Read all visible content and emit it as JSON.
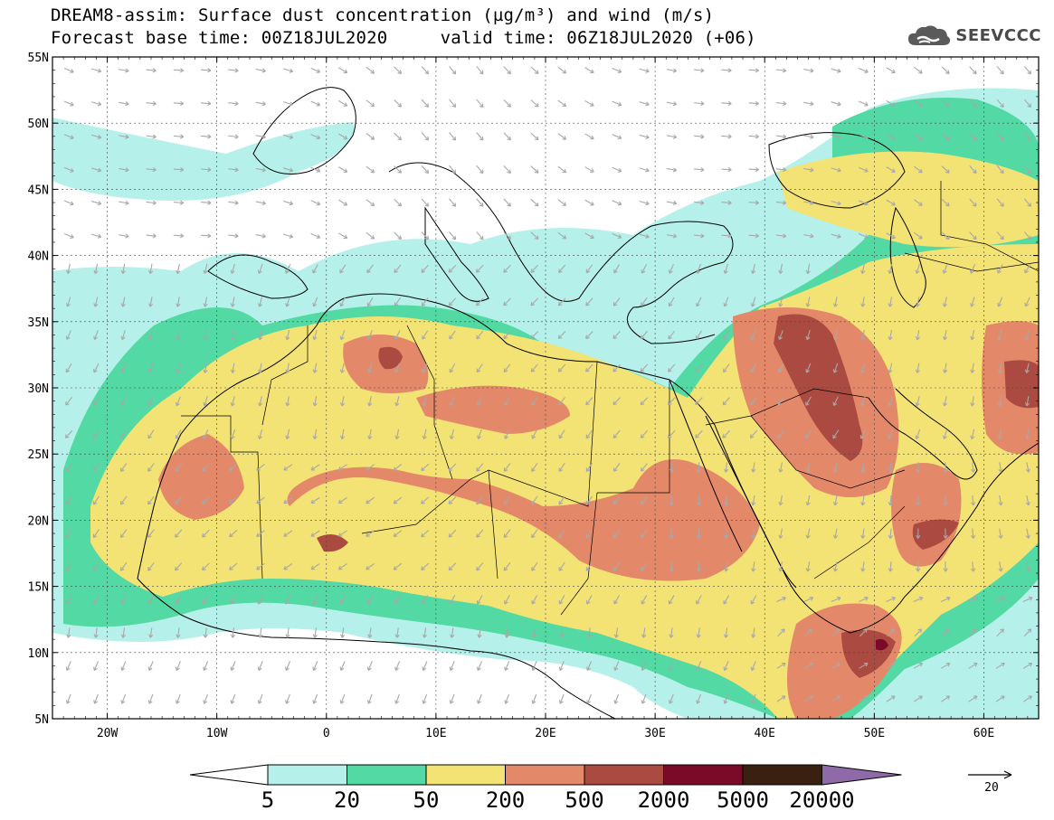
{
  "title": {
    "line1": "DREAM8-assim: Surface dust concentration (µg/m³) and wind (m/s)",
    "line2": "Forecast base time: 00Z18JUL2020     valid time: 06Z18JUL2020 (+06)"
  },
  "logo": {
    "icon": "cloud-icon",
    "text": "SEEVCCC"
  },
  "map": {
    "lon_range": [
      -25,
      65
    ],
    "lat_range": [
      5,
      55
    ],
    "lat_labels": [
      "5N",
      "10N",
      "15N",
      "20N",
      "25N",
      "30N",
      "35N",
      "40N",
      "45N",
      "50N",
      "55N"
    ],
    "lat_values": [
      5,
      10,
      15,
      20,
      25,
      30,
      35,
      40,
      45,
      50,
      55
    ],
    "lon_labels": [
      "20W",
      "10W",
      "0",
      "10E",
      "20E",
      "30E",
      "40E",
      "50E",
      "60E"
    ],
    "lon_values": [
      -20,
      -10,
      0,
      10,
      20,
      30,
      40,
      50,
      60
    ],
    "grid": true
  },
  "colorbar": {
    "labels": [
      "5",
      "20",
      "50",
      "200",
      "500",
      "2000",
      "5000",
      "20000"
    ],
    "colors": [
      "#b6f0ea",
      "#52d9a4",
      "#f3e274",
      "#e4886a",
      "#ab4a40",
      "#7a0a28",
      "#3a2010",
      "#8e6aa8"
    ]
  },
  "wind_reference": {
    "label": "20"
  }
}
